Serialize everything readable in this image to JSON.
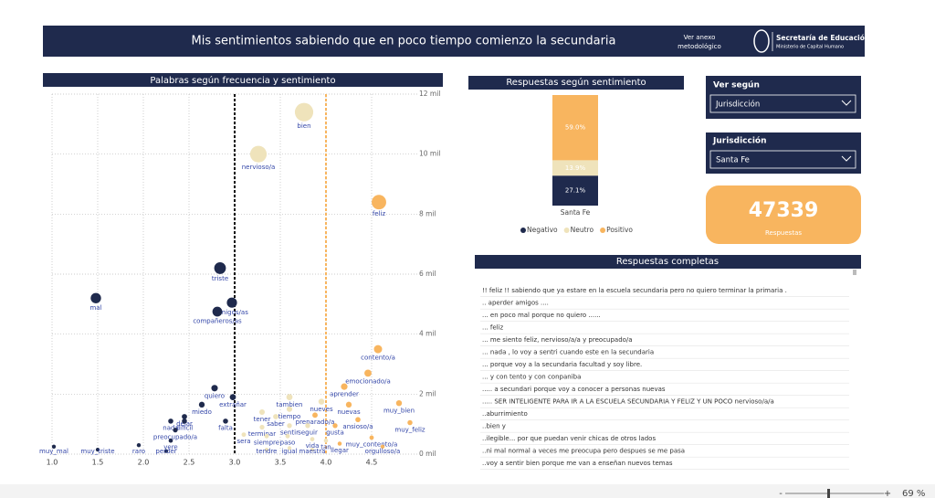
{
  "header": {
    "title": "Mis sentimientos sabiendo que en poco tiempo comienzo la secundaria",
    "link": [
      "Ver anexo",
      "metodológico"
    ],
    "logo_title": "Secretaría de Educación",
    "logo_subtitle": "Ministerio de Capital Humano"
  },
  "chart_data": [
    {
      "type": "scatter",
      "title": "Palabras según frecuencia y sentimiento",
      "labels": [
        "bien",
        "nervioso/a",
        "feliz",
        "triste",
        "mal",
        "amigos/as",
        "compañeros/as",
        "contento/a",
        "emocionado/a",
        "aprender",
        "quiero",
        "extrañar",
        "tambien",
        "miedo",
        "nuevas",
        "muy_bien",
        "nueves",
        "tiempo",
        "tener",
        "dejar",
        "saber",
        "preparado/a",
        "nada",
        "difícil",
        "ansioso/a",
        "muy_feliz",
        "falta",
        "terminar",
        "sentir",
        "seguir",
        "gusta",
        "preocupado/a",
        "sera",
        "siempre",
        "paso",
        "vida",
        "tan",
        "muy_contento/a",
        "llegar",
        "orgulloso/a",
        "muy_mal",
        "muy_triste",
        "raro",
        "vere",
        "perder",
        "tendre",
        "igual",
        "maestra"
      ],
      "x": [
        3.76,
        3.26,
        4.58,
        2.84,
        1.48,
        2.97,
        2.81,
        4.57,
        4.46,
        4.2,
        2.78,
        2.98,
        3.6,
        2.64,
        4.25,
        4.8,
        3.95,
        3.6,
        3.3,
        2.45,
        3.45,
        3.88,
        2.3,
        2.45,
        4.35,
        4.92,
        2.9,
        3.3,
        3.6,
        3.8,
        4.1,
        2.35,
        3.1,
        3.35,
        3.58,
        3.85,
        4.0,
        4.5,
        4.15,
        4.62,
        1.02,
        1.5,
        1.95,
        2.3,
        2.25,
        3.35,
        3.6,
        3.85
      ],
      "values": [
        11400,
        10000,
        8400,
        6200,
        5200,
        5050,
        4750,
        3500,
        2700,
        2250,
        2200,
        1900,
        1900,
        1650,
        1650,
        1700,
        1750,
        1500,
        1400,
        1250,
        1250,
        1300,
        1100,
        1100,
        1150,
        1050,
        1100,
        900,
        950,
        950,
        950,
        800,
        650,
        600,
        600,
        500,
        450,
        550,
        350,
        250,
        250,
        150,
        300,
        450,
        100,
        150,
        200,
        150
      ],
      "colors": [
        "#efe3bb",
        "#efe3bb",
        "#f8b55f",
        "#1f2a4d",
        "#1f2a4d",
        "#1f2a4d",
        "#1f2a4d",
        "#f8b55f",
        "#f8b55f",
        "#f8b55f",
        "#1f2a4d",
        "#1f2a4d",
        "#efe3bb",
        "#1f2a4d",
        "#f8b55f",
        "#f8b55f",
        "#efe3bb",
        "#efe3bb",
        "#efe3bb",
        "#1f2a4d",
        "#efe3bb",
        "#f8b55f",
        "#1f2a4d",
        "#1f2a4d",
        "#f8b55f",
        "#f8b55f",
        "#1f2a4d",
        "#efe3bb",
        "#efe3bb",
        "#efe3bb",
        "#f8b55f",
        "#1f2a4d",
        "#efe3bb",
        "#efe3bb",
        "#efe3bb",
        "#efe3bb",
        "#efe3bb",
        "#f8b55f",
        "#f8b55f",
        "#f8b55f",
        "#1f2a4d",
        "#1f2a4d",
        "#1f2a4d",
        "#1f2a4d",
        "#1f2a4d",
        "#efe3bb",
        "#efe3bb",
        "#efe3bb"
      ],
      "label_color": "#3346a8",
      "xlim": [
        1,
        5
      ],
      "ylim": [
        0,
        12000
      ],
      "xticks": [
        {
          "value": 1,
          "label": "1.0"
        },
        1.5,
        {
          "value": 2,
          "label": "2.0"
        },
        2.5,
        {
          "value": 3,
          "label": "3.0"
        },
        3.5,
        {
          "value": 4,
          "label": "4.0"
        },
        4.5
      ],
      "yticks": [
        {
          "value": 0,
          "label": "0 mil"
        },
        {
          "value": 2000,
          "label": "2 mil"
        },
        {
          "value": 4000,
          "label": "4 mil"
        },
        {
          "value": 6000,
          "label": "6 mil"
        },
        {
          "value": 8000,
          "label": "8 mil"
        },
        {
          "value": 10000,
          "label": "10 mil"
        },
        {
          "value": 12000,
          "label": "12 mil"
        }
      ],
      "grid": true,
      "reference_lines": [
        {
          "x": 3,
          "color": "#111111"
        },
        {
          "x": 4,
          "color": "#f8b55f"
        }
      ]
    },
    {
      "type": "bar",
      "stacked": true,
      "title": "Respuestas según sentimiento",
      "categories": [
        "Santa Fe"
      ],
      "series": [
        {
          "name": "Negativo",
          "color": "#1f2a4d",
          "values": [
            27.1
          ],
          "value_labels": [
            "27.1%"
          ]
        },
        {
          "name": "Neutro",
          "color": "#efe3bb",
          "values": [
            13.9
          ],
          "value_labels": [
            "13.9%"
          ]
        },
        {
          "name": "Positivo",
          "color": "#f8b55f",
          "values": [
            59.0
          ],
          "value_labels": [
            "59.0%"
          ]
        }
      ],
      "ylim": [
        0,
        100
      ],
      "legend": "bottom"
    }
  ],
  "slicers": [
    {
      "title": "Ver según",
      "selected": "Jurisdicción"
    },
    {
      "title": "Jurisdicción",
      "selected": "Santa Fe"
    }
  ],
  "kpi": {
    "value": "47339",
    "label": "Respuestas"
  },
  "table": {
    "title": "Respuestas completas",
    "rows": [
      "!! feliz !! sabiendo que ya estare en la escuela secundaria pero no quiero terminar la primaria .",
      ".. aperder amigos ....",
      "... en poco mal porque no quiero ......",
      "... feliz",
      "... me siento feliz, nervioso/a/a y preocupado/a",
      "... nada , lo voy a sentri cuando este en la secundaria",
      "... porque voy a la secundaria facultad y soy libre.",
      "... y con tento y con conpaniba",
      "..... a secundari porque voy a conocer a personas nuevas",
      "..... SER INTELIGENTE PARA IR A LA ESCUELA SECUNDARIA Y FELIZ Y UN POCO nervioso/a/a",
      "..aburrimiento",
      "..bien y",
      "..ilegible... por que puedan venir chicas de otros lados",
      "..ni mal normal a veces me preocupa pero despues se me pasa",
      "..voy a sentir bien porque me van a enseñan nuevos temas"
    ]
  },
  "zoom": "69 %"
}
